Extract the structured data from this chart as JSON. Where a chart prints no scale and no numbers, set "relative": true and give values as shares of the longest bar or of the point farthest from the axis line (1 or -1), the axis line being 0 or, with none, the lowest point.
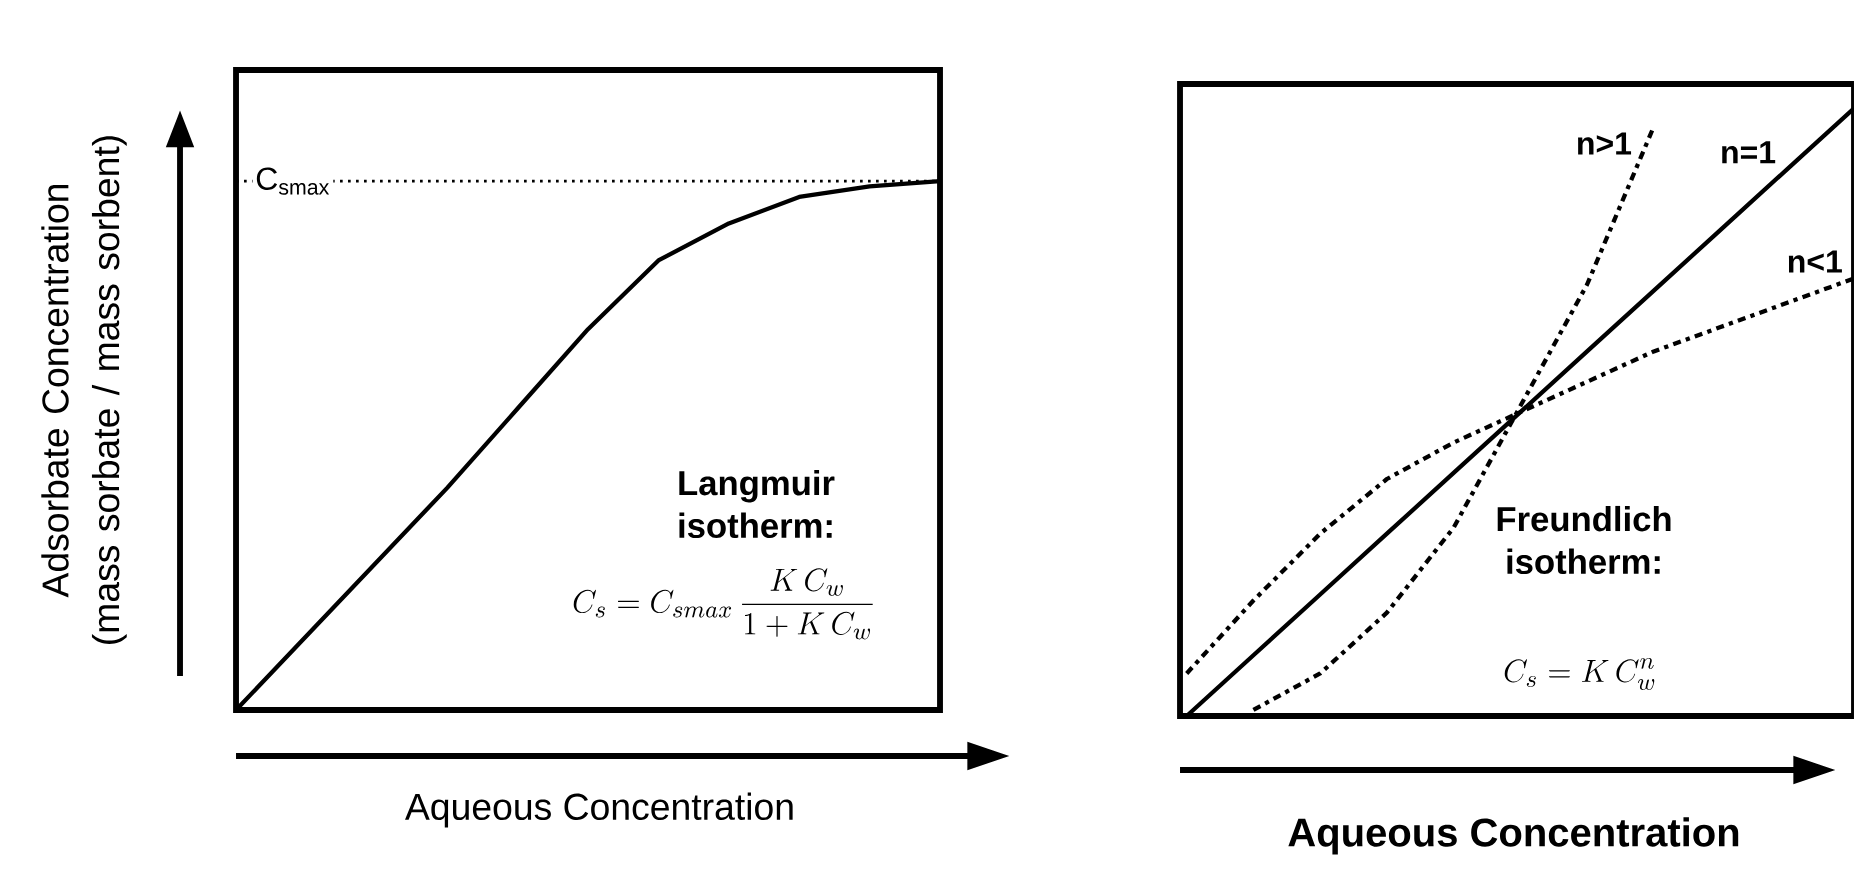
{
  "chart_data": [
    {
      "type": "line",
      "relative": true,
      "xlabel": "Aqueous   Concentration",
      "ylabel": "Adsorbate Concentration (mass sorbate / mass sorbent)",
      "categories": [
        null,
        null,
        null,
        null,
        null,
        null,
        null,
        null,
        null,
        null,
        null
      ],
      "series": [
        {
          "color": "#000000",
          "line_style": "solid",
          "values": [
            0,
            0.14,
            0.28,
            0.42,
            0.57,
            0.72,
            0.85,
            0.92,
            0.97,
            0.99,
            1
          ]
        }
      ],
      "ref_lines": [
        {
          "axis": "y",
          "value": 1,
          "label": "C$_{smax}$",
          "line_style": "dotted"
        }
      ],
      "annotations": [
        "Langmuir isotherm:",
        "C_s = C_{smax}\\,\\frac{K\\,C_w}{1 + K\\,C_w}"
      ]
    },
    {
      "type": "line",
      "relative": true,
      "xlabel": "Aqueous Concentration",
      "categories": [
        null,
        null,
        null,
        null,
        null,
        null,
        null,
        null,
        null,
        null,
        null
      ],
      "series": [
        {
          "name": "n>1",
          "color": "#000000",
          "line_style": "dashed",
          "values": [
            null,
            0.01,
            0.07,
            0.17,
            0.31,
            0.51,
            0.71,
            0.97,
            null,
            null,
            null
          ]
        },
        {
          "name": "n=1",
          "color": "#000000",
          "line_style": "solid",
          "values": [
            0,
            0.1,
            0.2,
            0.3,
            0.4,
            0.5,
            0.6,
            0.7,
            0.8,
            0.9,
            1
          ]
        },
        {
          "name": "n<1",
          "color": "#000000",
          "line_style": "dashed",
          "values": [
            0.07,
            0.19,
            0.3,
            0.39,
            0.45,
            0.5,
            0.55,
            0.6,
            0.64,
            0.68,
            0.72
          ]
        }
      ],
      "annotations": [
        "Freundlich isotherm:",
        "C_s = K\\,C_w^n"
      ]
    }
  ]
}
